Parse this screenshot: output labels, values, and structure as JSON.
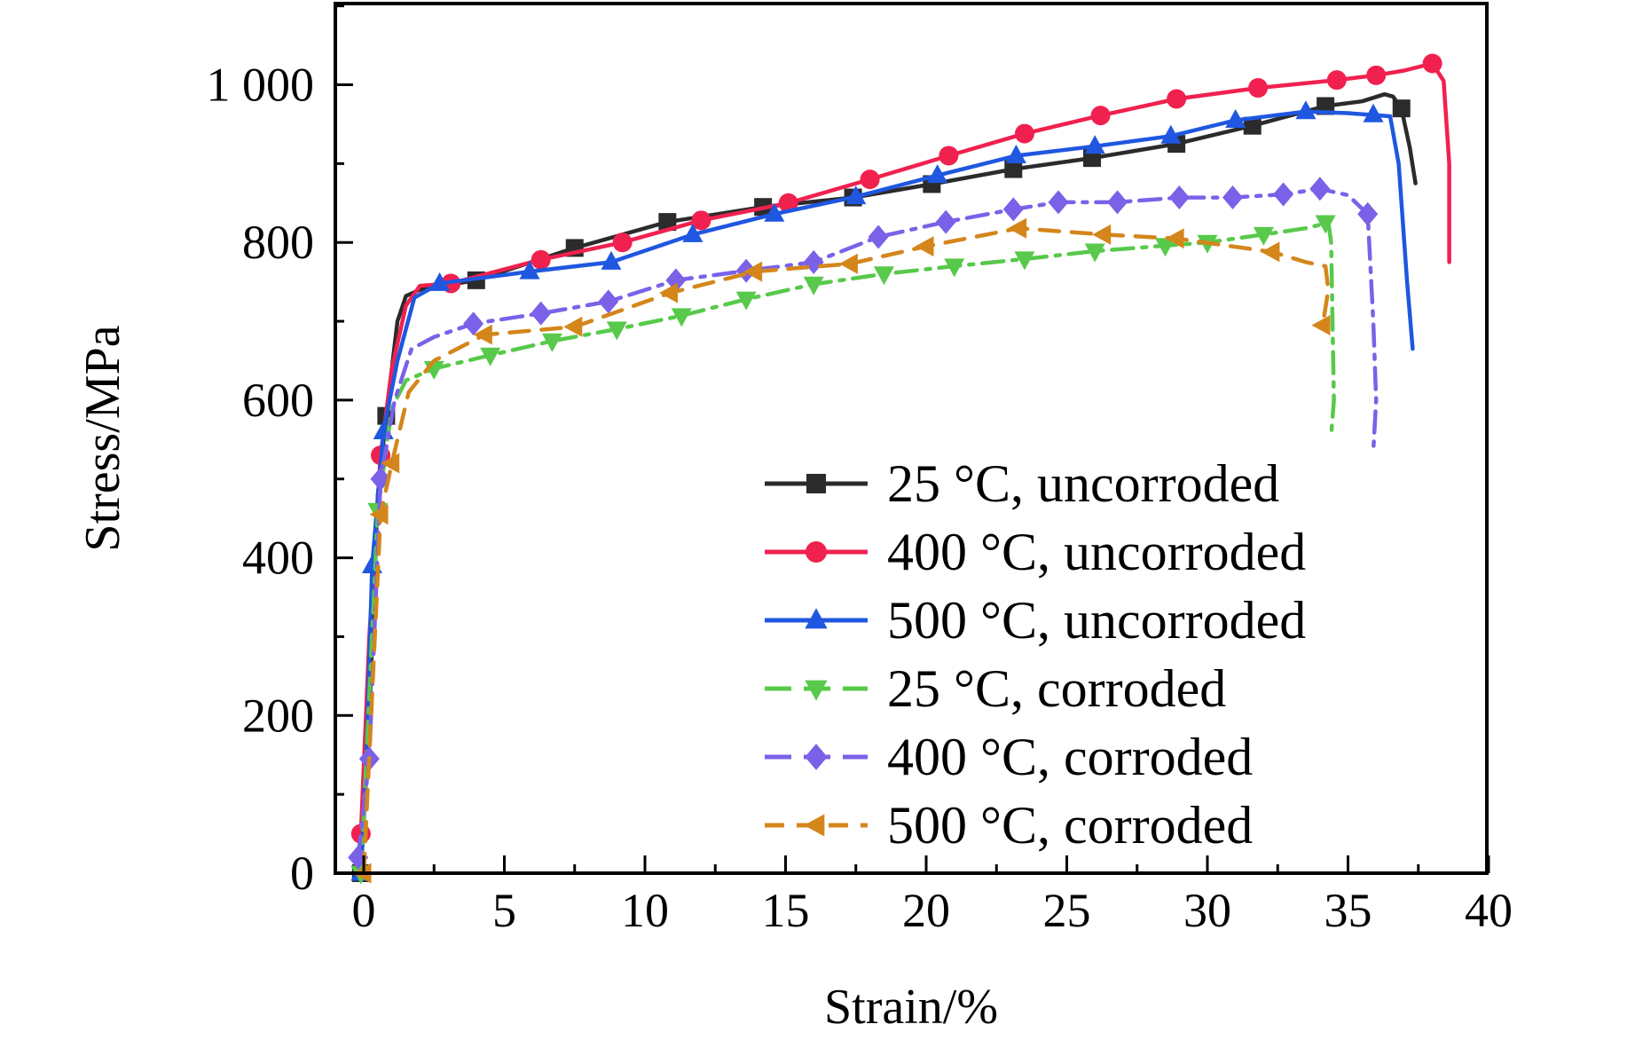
{
  "chart_data": {
    "type": "line",
    "title": "",
    "xlabel": "Strain/%",
    "ylabel": "Stress/MPa",
    "xlim": [
      -1,
      40
    ],
    "ylim": [
      0,
      1100
    ],
    "x_ticks": [
      0,
      5,
      10,
      15,
      20,
      25,
      30,
      35,
      40
    ],
    "y_ticks": [
      0,
      200,
      400,
      600,
      800,
      1000
    ],
    "x_tick_labels": [
      "0",
      "5",
      "10",
      "15",
      "20",
      "25",
      "30",
      "35",
      "40"
    ],
    "y_tick_labels": [
      "0",
      "200",
      "400",
      "600",
      "800",
      "1 000"
    ],
    "grid": false,
    "legend_position": "lower-right",
    "series": [
      {
        "name": "25 °C, uncorroded",
        "color": "#2b2b2b",
        "marker": "square",
        "dash": "solid",
        "x": [
          -0.1,
          0.2,
          0.5,
          0.8,
          1.2,
          1.5,
          2.0,
          4.0,
          7.5,
          10.8,
          14.2,
          17.4,
          20.2,
          23.1,
          25.9,
          28.9,
          31.6,
          34.2,
          35.5,
          36.3,
          36.6,
          36.9,
          37.2,
          37.4
        ],
        "y": [
          0,
          200,
          480,
          580,
          700,
          732,
          740,
          752,
          793,
          826,
          845,
          857,
          874,
          893,
          907,
          925,
          948,
          973,
          979,
          988,
          985,
          970,
          920,
          875
        ],
        "markers_x": [
          -0.1,
          0.8,
          4.0,
          7.5,
          10.8,
          14.2,
          17.4,
          20.2,
          23.1,
          25.9,
          28.9,
          31.6,
          34.2,
          36.9
        ],
        "markers_y": [
          0,
          580,
          752,
          793,
          826,
          845,
          857,
          874,
          893,
          907,
          925,
          948,
          973,
          970
        ]
      },
      {
        "name": "400 °C, uncorroded",
        "color": "#f0214f",
        "marker": "circle",
        "dash": "solid",
        "x": [
          -0.1,
          0.2,
          0.6,
          1.0,
          1.5,
          2.0,
          3.1,
          6.3,
          9.2,
          12.0,
          15.1,
          18.0,
          20.8,
          23.5,
          26.2,
          28.9,
          31.8,
          34.6,
          36.0,
          37.0,
          38.0,
          38.4,
          38.6,
          38.6
        ],
        "y": [
          50,
          300,
          530,
          640,
          720,
          745,
          748,
          778,
          800,
          828,
          850,
          880,
          910,
          938,
          961,
          982,
          996,
          1006,
          1012,
          1018,
          1027,
          1005,
          900,
          775
        ],
        "markers_x": [
          -0.1,
          0.6,
          3.1,
          6.3,
          9.2,
          12.0,
          15.1,
          18.0,
          20.8,
          23.5,
          26.2,
          28.9,
          31.8,
          34.6,
          36.0,
          38.0
        ],
        "markers_y": [
          50,
          530,
          748,
          778,
          800,
          828,
          850,
          880,
          910,
          938,
          961,
          982,
          996,
          1006,
          1012,
          1027
        ]
      },
      {
        "name": "500 °C, uncorroded",
        "color": "#1f57e0",
        "marker": "triangle-up",
        "dash": "solid",
        "x": [
          -0.1,
          0.1,
          0.3,
          0.7,
          1.2,
          1.8,
          2.7,
          5.9,
          8.8,
          11.7,
          14.6,
          17.5,
          20.4,
          23.2,
          26.0,
          28.7,
          31.0,
          33.5,
          35.0,
          36.5,
          36.8,
          37.1,
          37.3
        ],
        "y": [
          0,
          150,
          390,
          560,
          650,
          730,
          748,
          763,
          775,
          810,
          836,
          858,
          885,
          910,
          922,
          935,
          955,
          966,
          964,
          960,
          900,
          750,
          665
        ],
        "markers_x": [
          -0.1,
          0.3,
          0.7,
          2.7,
          5.9,
          8.8,
          11.7,
          14.6,
          17.5,
          20.4,
          23.2,
          26.0,
          28.7,
          31.0,
          33.5,
          35.9
        ],
        "markers_y": [
          0,
          390,
          560,
          748,
          763,
          775,
          810,
          836,
          858,
          885,
          910,
          922,
          935,
          955,
          966,
          962
        ]
      },
      {
        "name": "25 °C, corroded",
        "color": "#58c94a",
        "marker": "triangle-down",
        "dash": "dashdot",
        "x": [
          -0.1,
          0.1,
          0.5,
          1.0,
          1.5,
          2.5,
          4.5,
          6.7,
          9.0,
          11.3,
          13.6,
          16.0,
          18.5,
          21.0,
          23.5,
          26.0,
          28.5,
          30.0,
          32.0,
          33.5,
          34.3,
          34.4,
          34.5,
          34.4
        ],
        "y": [
          0,
          150,
          460,
          590,
          625,
          640,
          657,
          675,
          690,
          707,
          728,
          747,
          760,
          770,
          779,
          789,
          796,
          800,
          810,
          818,
          825,
          800,
          600,
          555
        ],
        "markers_x": [
          -0.1,
          0.5,
          2.5,
          4.5,
          6.7,
          9.0,
          11.3,
          13.6,
          16.0,
          18.5,
          21.0,
          23.5,
          26.0,
          28.5,
          30.0,
          32.0,
          34.2
        ],
        "markers_y": [
          0,
          460,
          640,
          657,
          675,
          690,
          707,
          728,
          747,
          760,
          770,
          779,
          789,
          796,
          800,
          810,
          825
        ]
      },
      {
        "name": "400 °C, corroded",
        "color": "#7b61e8",
        "marker": "diamond",
        "dash": "dashdot",
        "x": [
          -0.2,
          0.2,
          0.6,
          1.1,
          1.7,
          2.5,
          3.9,
          6.3,
          8.7,
          11.1,
          13.6,
          16.0,
          18.3,
          20.7,
          23.1,
          24.7,
          26.8,
          29.0,
          30.9,
          32.7,
          34.0,
          35.0,
          35.7,
          35.9,
          36.0,
          35.9
        ],
        "y": [
          20,
          145,
          500,
          600,
          665,
          680,
          697,
          710,
          725,
          752,
          764,
          775,
          807,
          826,
          842,
          851,
          851,
          857,
          857,
          861,
          868,
          860,
          836,
          700,
          600,
          535
        ],
        "markers_x": [
          -0.2,
          0.2,
          0.6,
          3.9,
          6.3,
          8.7,
          11.1,
          13.6,
          16.0,
          18.3,
          20.7,
          23.1,
          24.7,
          26.8,
          29.0,
          30.9,
          32.7,
          34.0,
          35.7
        ],
        "markers_y": [
          20,
          145,
          500,
          697,
          710,
          725,
          752,
          764,
          775,
          807,
          826,
          842,
          851,
          851,
          857,
          857,
          861,
          868,
          836
        ]
      },
      {
        "name": "500 °C, corroded",
        "color": "#d4861b",
        "marker": "triangle-left",
        "dash": "dash",
        "x": [
          0.0,
          0.2,
          0.6,
          1.0,
          1.6,
          2.5,
          4.3,
          7.5,
          10.9,
          13.9,
          17.3,
          20.0,
          23.3,
          26.3,
          28.9,
          30.5,
          32.3,
          33.5,
          34.2,
          34.3,
          34.1
        ],
        "y": [
          0,
          150,
          455,
          520,
          610,
          650,
          683,
          693,
          736,
          763,
          773,
          795,
          818,
          810,
          805,
          797,
          788,
          775,
          770,
          740,
          695
        ],
        "markers_x": [
          0.0,
          0.6,
          1.0,
          4.3,
          7.5,
          10.9,
          13.9,
          17.3,
          20.0,
          23.3,
          26.3,
          28.9,
          32.3,
          34.1
        ],
        "markers_y": [
          0,
          455,
          520,
          683,
          693,
          736,
          763,
          773,
          795,
          818,
          810,
          805,
          788,
          695
        ]
      }
    ]
  }
}
